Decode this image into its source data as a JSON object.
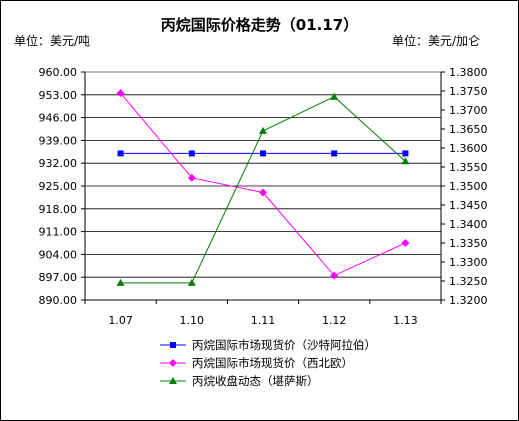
{
  "chart_data": {
    "type": "line",
    "title": "丙烷国际价格走势（01.17）",
    "left_unit": "单位：美元/吨",
    "right_unit": "单位：美元/加仑",
    "categories": [
      "1.07",
      "1.10",
      "1.11",
      "1.12",
      "1.13"
    ],
    "y_left": {
      "ylim": [
        890,
        960
      ],
      "ticks": [
        "960.00",
        "953.00",
        "946.00",
        "939.00",
        "932.00",
        "925.00",
        "918.00",
        "911.00",
        "904.00",
        "897.00",
        "890.00"
      ]
    },
    "y_right": {
      "ylim": [
        1.32,
        1.38
      ],
      "ticks": [
        "1.3800",
        "1.3750",
        "1.3700",
        "1.3650",
        "1.3600",
        "1.3550",
        "1.3500",
        "1.3450",
        "1.3400",
        "1.3350",
        "1.3300",
        "1.3250",
        "1.3200"
      ]
    },
    "grid": true,
    "legend_position": "bottom",
    "series": [
      {
        "name": "丙烷国际市场现货价（沙特阿拉伯）",
        "axis": "left",
        "marker": "square",
        "color": "#0000ff",
        "values": [
          935,
          935,
          935,
          935,
          935
        ]
      },
      {
        "name": "丙烷国际市场现货价（西北欧）",
        "axis": "left",
        "marker": "diamond",
        "color": "#ff00ff",
        "values": [
          953.5,
          927.5,
          923,
          897.5,
          907.5
        ]
      },
      {
        "name": "丙烷收盘动态（堪萨斯）",
        "axis": "right",
        "marker": "triangle",
        "color": "#008000",
        "values": [
          1.3245,
          1.3245,
          1.3645,
          1.3735,
          1.3565
        ]
      }
    ]
  }
}
